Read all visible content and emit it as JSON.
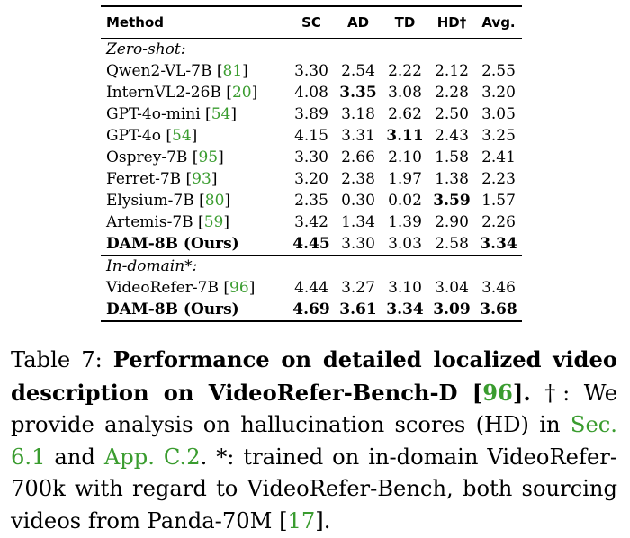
{
  "table": {
    "headers": [
      "Method",
      "SC",
      "AD",
      "TD",
      "HD†",
      "Avg."
    ],
    "sections": [
      {
        "label": "Zero-shot:",
        "rows": [
          {
            "name": "Qwen2-VL-7B",
            "cite": "81",
            "values": [
              "3.30",
              "2.54",
              "2.22",
              "2.12",
              "2.55"
            ],
            "bold": [
              false,
              false,
              false,
              false,
              false
            ],
            "bold_name": false
          },
          {
            "name": "InternVL2-26B",
            "cite": "20",
            "values": [
              "4.08",
              "3.35",
              "3.08",
              "2.28",
              "3.20"
            ],
            "bold": [
              false,
              true,
              false,
              false,
              false
            ],
            "bold_name": false
          },
          {
            "name": "GPT-4o-mini",
            "cite": "54",
            "values": [
              "3.89",
              "3.18",
              "2.62",
              "2.50",
              "3.05"
            ],
            "bold": [
              false,
              false,
              false,
              false,
              false
            ],
            "bold_name": false
          },
          {
            "name": "GPT-4o",
            "cite": "54",
            "values": [
              "4.15",
              "3.31",
              "3.11",
              "2.43",
              "3.25"
            ],
            "bold": [
              false,
              false,
              true,
              false,
              false
            ],
            "bold_name": false
          },
          {
            "name": "Osprey-7B",
            "cite": "95",
            "values": [
              "3.30",
              "2.66",
              "2.10",
              "1.58",
              "2.41"
            ],
            "bold": [
              false,
              false,
              false,
              false,
              false
            ],
            "bold_name": false
          },
          {
            "name": "Ferret-7B",
            "cite": "93",
            "values": [
              "3.20",
              "2.38",
              "1.97",
              "1.38",
              "2.23"
            ],
            "bold": [
              false,
              false,
              false,
              false,
              false
            ],
            "bold_name": false
          },
          {
            "name": "Elysium-7B",
            "cite": "80",
            "values": [
              "2.35",
              "0.30",
              "0.02",
              "3.59",
              "1.57"
            ],
            "bold": [
              false,
              false,
              false,
              true,
              false
            ],
            "bold_name": false
          },
          {
            "name": "Artemis-7B",
            "cite": "59",
            "values": [
              "3.42",
              "1.34",
              "1.39",
              "2.90",
              "2.26"
            ],
            "bold": [
              false,
              false,
              false,
              false,
              false
            ],
            "bold_name": false
          },
          {
            "name": "DAM-8B (Ours)",
            "cite": "",
            "values": [
              "4.45",
              "3.30",
              "3.03",
              "2.58",
              "3.34"
            ],
            "bold": [
              true,
              false,
              false,
              false,
              true
            ],
            "bold_name": true
          }
        ]
      },
      {
        "label": "In-domain*:",
        "rows": [
          {
            "name": "VideoRefer-7B",
            "cite": "96",
            "values": [
              "4.44",
              "3.27",
              "3.10",
              "3.04",
              "3.46"
            ],
            "bold": [
              false,
              false,
              false,
              false,
              false
            ],
            "bold_name": false
          },
          {
            "name": "DAM-8B (Ours)",
            "cite": "",
            "values": [
              "4.69",
              "3.61",
              "3.34",
              "3.09",
              "3.68"
            ],
            "bold": [
              true,
              true,
              true,
              true,
              true
            ],
            "bold_name": true
          }
        ]
      }
    ]
  },
  "caption": {
    "label": "Table 7:",
    "title_bold": "Performance on detailed localized video description on VideoRefer-Bench-D",
    "title_cite": "96",
    "title_end": ".",
    "text_1": " †: We provide analysis on hallucination scores (HD) in ",
    "link_1": "Sec. 6.1",
    "text_2": " and ",
    "link_2": "App. C.2",
    "text_3": ".  *: trained on in-domain VideoRefer-700k with regard to VideoRefer-Bench, both sourcing videos from Panda-70M ",
    "cite_2": "17",
    "text_4": "."
  }
}
